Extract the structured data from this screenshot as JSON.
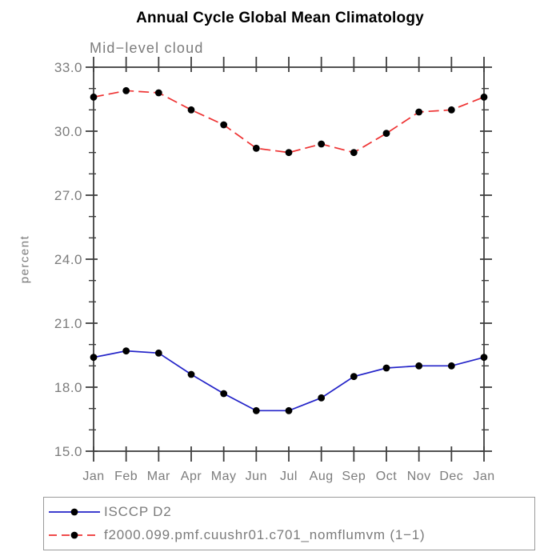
{
  "chart_data": {
    "type": "line",
    "title": "Annual Cycle Global Mean Climatology",
    "subtitle": "Mid−level cloud",
    "ylabel": "percent",
    "x_categories": [
      "Jan",
      "Feb",
      "Mar",
      "Apr",
      "May",
      "Jun",
      "Jul",
      "Aug",
      "Sep",
      "Oct",
      "Nov",
      "Dec",
      "Jan"
    ],
    "series": [
      {
        "name": "ISCCP D2",
        "line_color": "#2323c8",
        "line_style": "solid",
        "marker": "filled-circle",
        "marker_color": "#000000",
        "values": [
          19.4,
          19.7,
          19.6,
          18.6,
          17.7,
          16.9,
          16.9,
          17.5,
          18.5,
          18.9,
          19.0,
          19.0,
          19.4
        ]
      },
      {
        "name": "f2000.099.pmf.cuushr01.c701_nomflumvm (1−1)",
        "line_color": "#ee3232",
        "line_style": "dashed",
        "marker": "filled-circle",
        "marker_color": "#000000",
        "values": [
          31.6,
          31.9,
          31.8,
          31.0,
          30.3,
          29.2,
          29.0,
          29.4,
          29.0,
          29.9,
          30.9,
          31.0,
          31.6
        ]
      }
    ],
    "y_axis": {
      "min": 15.0,
      "max": 33.0,
      "major_step": 3.0,
      "minor_step": 1.0,
      "major_tick_labels": [
        "15.0",
        "18.0",
        "21.0",
        "24.0",
        "27.0",
        "30.0",
        "33.0"
      ],
      "label_decimals": 1
    },
    "x_axis": {
      "tick_every": 1,
      "minor_ticks": false
    },
    "grid": false,
    "legend_position": "bottom-left",
    "frame": "full-box"
  },
  "colors": {
    "axis": "#3f3f3f",
    "tick_label": "#7c7c7c",
    "title": "#000000",
    "subtitle": "#7c7c7c",
    "legend_text": "#7b7b7b",
    "legend_border": "#9a9a9a",
    "background": "#ffffff"
  }
}
